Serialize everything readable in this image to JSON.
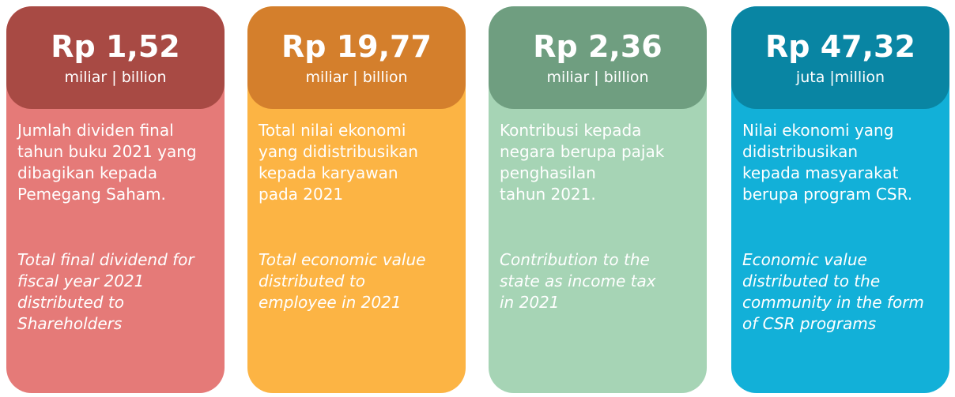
{
  "cards": [
    {
      "amount": "Rp 1,52",
      "unit": "miliar | billion",
      "id_lines": [
        "Jumlah dividen final",
        "tahun buku 2021 yang",
        "dibagikan kepada",
        "Pemegang Saham."
      ],
      "en_lines": [
        "Total final dividend for",
        "fiscal year 2021",
        "distributed to",
        "Shareholders"
      ],
      "header_color": "#a84a44",
      "body_color": "#e57a78",
      "text_color": "#ffffff"
    },
    {
      "amount": "Rp 19,77",
      "unit": "miliar | billion",
      "id_lines": [
        "Total nilai ekonomi",
        "yang didistribusikan",
        "kepada karyawan",
        "pada 2021"
      ],
      "en_lines": [
        "Total economic value",
        "distributed to",
        "employee in 2021"
      ],
      "header_color": "#d47f2c",
      "body_color": "#fcb444",
      "text_color": "#ffffff"
    },
    {
      "amount": "Rp 2,36",
      "unit": "miliar | billion",
      "id_lines": [
        "Kontribusi kepada",
        "negara berupa pajak",
        "penghasilan",
        "tahun 2021."
      ],
      "en_lines": [
        "Contribution to the",
        "state as income tax",
        "in 2021"
      ],
      "header_color": "#6f9e80",
      "body_color": "#a6d4b5",
      "text_color": "#ffffff"
    },
    {
      "amount": "Rp 47,32",
      "unit": "juta |million",
      "id_lines": [
        "Nilai ekonomi yang",
        "didistribusikan",
        "kepada masyarakat",
        "berupa program CSR."
      ],
      "en_lines": [
        "Economic value",
        "distributed to the",
        "community in the form",
        "of CSR programs"
      ],
      "header_color": "#0985a3",
      "body_color": "#12b0d8",
      "text_color": "#ffffff"
    }
  ]
}
